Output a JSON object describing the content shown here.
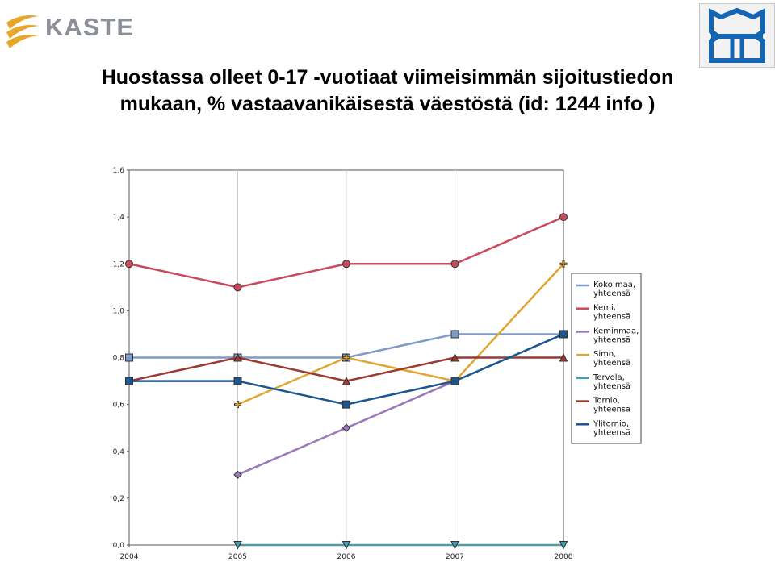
{
  "header": {
    "brand": "KASTE",
    "title_line1": "Huostassa olleet 0-17 -vuotiaat viimeisimmän sijoitustiedon",
    "title_line2": "mukaan, % vastaavanikäisestä väestöstä (id: 1244 info )"
  },
  "chart_data": {
    "type": "line",
    "title": "Huostassa olleet 0-17 -vuotiaat viimeisimmän sijoitustiedon mukaan, % vastaavanikäisestä väestöstä (id: 1244 info )",
    "categories": [
      "2004",
      "2005",
      "2006",
      "2007",
      "2008"
    ],
    "y_tick_labels": [
      "0,0",
      "0,2",
      "0,4",
      "0,6",
      "0,8",
      "1,0",
      "1,2",
      "1,4",
      "1,6"
    ],
    "ylim": [
      0,
      1.6
    ],
    "grid": "vertical",
    "legend_position": "right",
    "series": [
      {
        "name": [
          "Koko maa,",
          "yhteensä"
        ],
        "values": [
          0.8,
          0.8,
          0.8,
          0.9,
          0.9
        ],
        "color": "#7f9bc8",
        "marker": "square"
      },
      {
        "name": [
          "Kemi,",
          "yhteensä"
        ],
        "values": [
          1.2,
          1.1,
          1.2,
          1.2,
          1.4
        ],
        "color": "#c94a5c",
        "marker": "circle"
      },
      {
        "name": [
          "Keminmaa,",
          "yhteensä"
        ],
        "values": [
          null,
          0.3,
          0.5,
          0.7,
          null
        ],
        "color": "#9b79b8",
        "marker": "diamond"
      },
      {
        "name": [
          "Simo,",
          "yhteensä"
        ],
        "values": [
          null,
          0.6,
          0.8,
          0.7,
          1.2
        ],
        "color": "#e0a630",
        "marker": "plus"
      },
      {
        "name": [
          "Tervola,",
          "yhteensä"
        ],
        "values": [
          null,
          0.0,
          0.0,
          0.0,
          0.0
        ],
        "color": "#4a9ca8",
        "marker": "triangle-down"
      },
      {
        "name": [
          "Tornio,",
          "yhteensä"
        ],
        "values": [
          0.7,
          0.8,
          0.7,
          0.8,
          0.8
        ],
        "color": "#9b3a32",
        "marker": "triangle-up"
      },
      {
        "name": [
          "Ylitornio,",
          "yhteensä"
        ],
        "values": [
          0.7,
          0.7,
          0.6,
          0.7,
          0.9
        ],
        "color": "#1b5690",
        "marker": "square"
      }
    ]
  }
}
